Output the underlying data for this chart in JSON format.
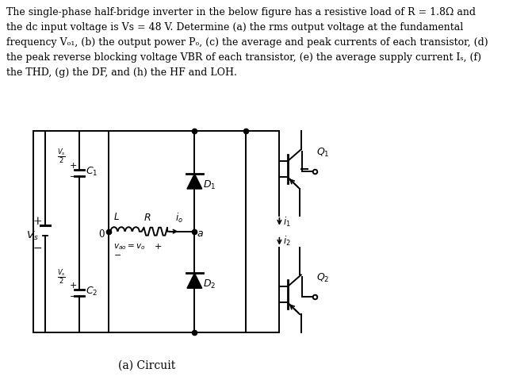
{
  "bg_color": "#ffffff",
  "text_color": "#000000",
  "problem_lines": [
    "The single-phase half-bridge inverter in the below figure has a resistive load of R = 1.8Ω and",
    "the dc input voltage is Vs = 48 V. Determine (a) the rms output voltage at the fundamental",
    "frequency Vₒ₁, (b) the output power Pₒ, (c) the average and peak currents of each transistor, (d)",
    "the peak reverse blocking voltage VBR of each transistor, (e) the average supply current Iₛ, (f)",
    "the THD, (g) the DF, and (h) the HF and LOH."
  ],
  "circuit_label": "(a) Circuit",
  "fig_width": 6.71,
  "fig_height": 4.84,
  "dpi": 100
}
